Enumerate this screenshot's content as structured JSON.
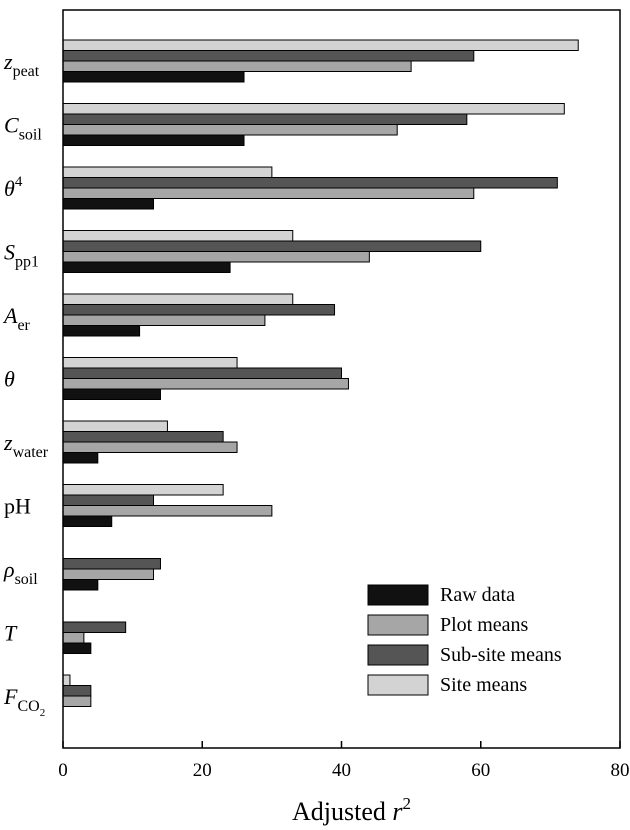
{
  "chart_data": {
    "type": "bar",
    "orientation": "horizontal",
    "categories": [
      {
        "base": "z",
        "italic": true,
        "sub": "peat",
        "sup": ""
      },
      {
        "base": "C",
        "italic": true,
        "sub": "soil",
        "sup": ""
      },
      {
        "base": "θ",
        "italic": true,
        "sub": "",
        "sup": "4"
      },
      {
        "base": "S",
        "italic": true,
        "sub": "pp1",
        "sup": ""
      },
      {
        "base": "A",
        "italic": true,
        "sub": "er",
        "sup": ""
      },
      {
        "base": "θ",
        "italic": true,
        "sub": "",
        "sup": ""
      },
      {
        "base": "z",
        "italic": true,
        "sub": "water",
        "sup": ""
      },
      {
        "base": "pH",
        "italic": false,
        "sub": "",
        "sup": ""
      },
      {
        "base": "ρ",
        "italic": true,
        "sub": "soil",
        "sup": ""
      },
      {
        "base": "T",
        "italic": true,
        "sub": "",
        "sup": ""
      },
      {
        "base": "F",
        "italic": true,
        "sub": "CO",
        "subsub": "2",
        "sup": ""
      }
    ],
    "series": [
      {
        "name": "Site means",
        "color": "#d3d3d3",
        "values": [
          74,
          72,
          30,
          33,
          33,
          25,
          15,
          23,
          0,
          0,
          1
        ]
      },
      {
        "name": "Sub-site means",
        "color": "#555555",
        "values": [
          59,
          58,
          71,
          60,
          39,
          40,
          23,
          13,
          14,
          9,
          4
        ]
      },
      {
        "name": "Plot means",
        "color": "#a6a6a6",
        "values": [
          50,
          48,
          59,
          44,
          29,
          41,
          25,
          30,
          13,
          3,
          4
        ]
      },
      {
        "name": "Raw data",
        "color": "#111111",
        "values": [
          26,
          26,
          13,
          24,
          11,
          14,
          5,
          7,
          5,
          4,
          0
        ]
      }
    ],
    "legend_order": [
      "Raw data",
      "Plot means",
      "Sub-site means",
      "Site means"
    ],
    "legend_position": "bottom-right",
    "xlabel": {
      "text": "Adjusted ",
      "var": "r",
      "sup": "2"
    },
    "xlim": [
      0,
      80
    ],
    "xticks": [
      "0",
      "20",
      "40",
      "60",
      "80"
    ],
    "grid": false
  }
}
